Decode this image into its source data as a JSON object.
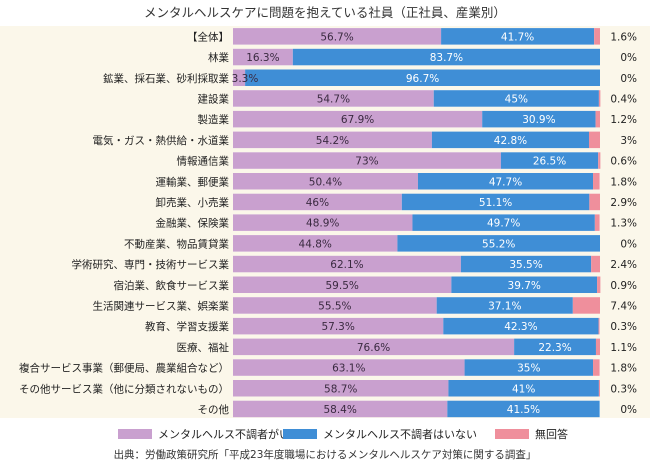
{
  "chart_data": {
    "type": "bar",
    "orientation": "horizontal",
    "stacked": true,
    "title": "メンタルヘルスケアに問題を抱えている社員（正社員、産業別）",
    "categories": [
      "【全体】",
      "林業",
      "鉱業、採石業、砂利採取業",
      "建設業",
      "製造業",
      "電気・ガス・熱供給・水道業",
      "情報通信業",
      "運輸業、郵便業",
      "卸売業、小売業",
      "金融業、保険業",
      "不動産業、物品賃貸業",
      "学術研究、専門・技術サービス業",
      "宿泊業、飲食サービス業",
      "生活関連サービス業、娯楽業",
      "教育、学習支援業",
      "医療、福祉",
      "複合サービス事業（郵便局、農業組合など）",
      "その他サービス業（他に分類されないもの）",
      "その他"
    ],
    "series": [
      {
        "name": "メンタルヘルス不調者がいる",
        "color": "#c9a0cf",
        "values": [
          56.7,
          16.3,
          3.3,
          54.7,
          67.9,
          54.2,
          73,
          50.4,
          46,
          48.9,
          44.8,
          62.1,
          59.5,
          55.5,
          57.3,
          76.6,
          63.1,
          58.7,
          58.4
        ],
        "labels": [
          "56.7%",
          "16.3%",
          "3.3%",
          "54.7%",
          "67.9%",
          "54.2%",
          "73%",
          "50.4%",
          "46%",
          "48.9%",
          "44.8%",
          "62.1%",
          "59.5%",
          "55.5%",
          "57.3%",
          "76.6%",
          "63.1%",
          "58.7%",
          "58.4%"
        ]
      },
      {
        "name": "メンタルヘルス不調者はいない",
        "color": "#3f8ed6",
        "values": [
          41.7,
          83.7,
          96.7,
          45,
          30.9,
          42.8,
          26.5,
          47.7,
          51.1,
          49.7,
          55.2,
          35.5,
          39.7,
          37.1,
          42.3,
          22.3,
          35,
          41,
          41.5
        ],
        "labels": [
          "41.7%",
          "83.7%",
          "96.7%",
          "45%",
          "30.9%",
          "42.8%",
          "26.5%",
          "47.7%",
          "51.1%",
          "49.7%",
          "55.2%",
          "35.5%",
          "39.7%",
          "37.1%",
          "42.3%",
          "22.3%",
          "35%",
          "41%",
          "41.5%"
        ]
      },
      {
        "name": "無回答",
        "color": "#ef8f9c",
        "values": [
          1.6,
          0,
          0,
          0.4,
          1.2,
          3,
          0.6,
          1.8,
          2.9,
          1.3,
          0,
          2.4,
          0.9,
          7.4,
          0.3,
          1.1,
          1.8,
          0.3,
          0
        ],
        "labels": [
          "1.6%",
          "0%",
          "0%",
          "0.4%",
          "1.2%",
          "3%",
          "0.6%",
          "1.8%",
          "2.9%",
          "1.3%",
          "0%",
          "2.4%",
          "0.9%",
          "7.4%",
          "0.3%",
          "1.1%",
          "1.8%",
          "0.3%",
          "0%"
        ]
      }
    ],
    "xlim": [
      0,
      100
    ],
    "xlabel": "",
    "ylabel": "",
    "legend_position": "bottom"
  },
  "source": "出典：労働政策研究所「平成23年度職場におけるメンタルヘルスケア対策に関する調査」"
}
